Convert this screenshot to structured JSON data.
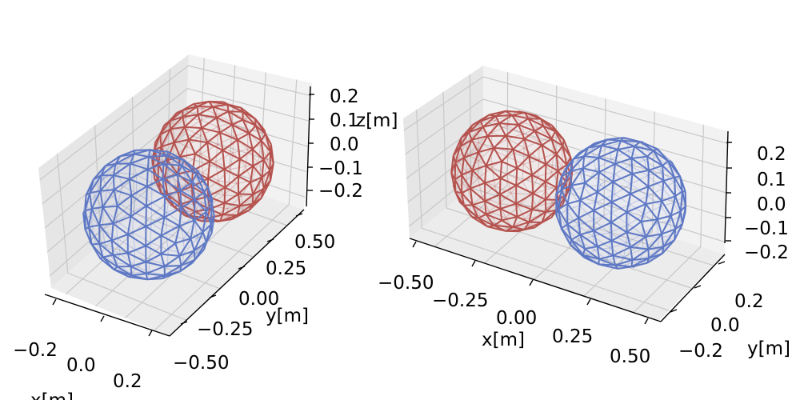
{
  "chart_data": [
    {
      "type": "wireframe-3d",
      "xlabel": "x[m]",
      "ylabel": "y[m]",
      "zlabel": "z[m]",
      "xticks": [
        "−0.2",
        "0.0",
        "0.2"
      ],
      "yticks": [
        "−0.50",
        "−0.25",
        "0.00",
        "0.25",
        "0.50"
      ],
      "zticks": [
        "−0.2",
        "−0.1",
        "0.0",
        "0.1",
        "0.2"
      ],
      "grid": true,
      "spheres": [
        {
          "color": "#b5524e",
          "center": [
            0.0,
            0.25,
            0.0
          ],
          "radius": 0.2
        },
        {
          "color": "#5e78c4",
          "center": [
            0.0,
            -0.25,
            0.0
          ],
          "radius": 0.2
        }
      ]
    },
    {
      "type": "wireframe-3d",
      "xlabel": "x[m]",
      "ylabel": "y[m]",
      "zlabel": "",
      "xticks": [
        "−0.50",
        "−0.25",
        "0.00",
        "0.25",
        "0.50"
      ],
      "yticks": [
        "−0.2",
        "0.0",
        "0.2"
      ],
      "zticks": [
        "−0.2",
        "−0.1",
        "0.0",
        "0.1",
        "0.2"
      ],
      "grid": true,
      "spheres": [
        {
          "color": "#b5524e",
          "center": [
            -0.25,
            0.0,
            0.0
          ],
          "radius": 0.2
        },
        {
          "color": "#5e78c4",
          "center": [
            0.25,
            0.0,
            0.0
          ],
          "radius": 0.2
        }
      ]
    }
  ]
}
